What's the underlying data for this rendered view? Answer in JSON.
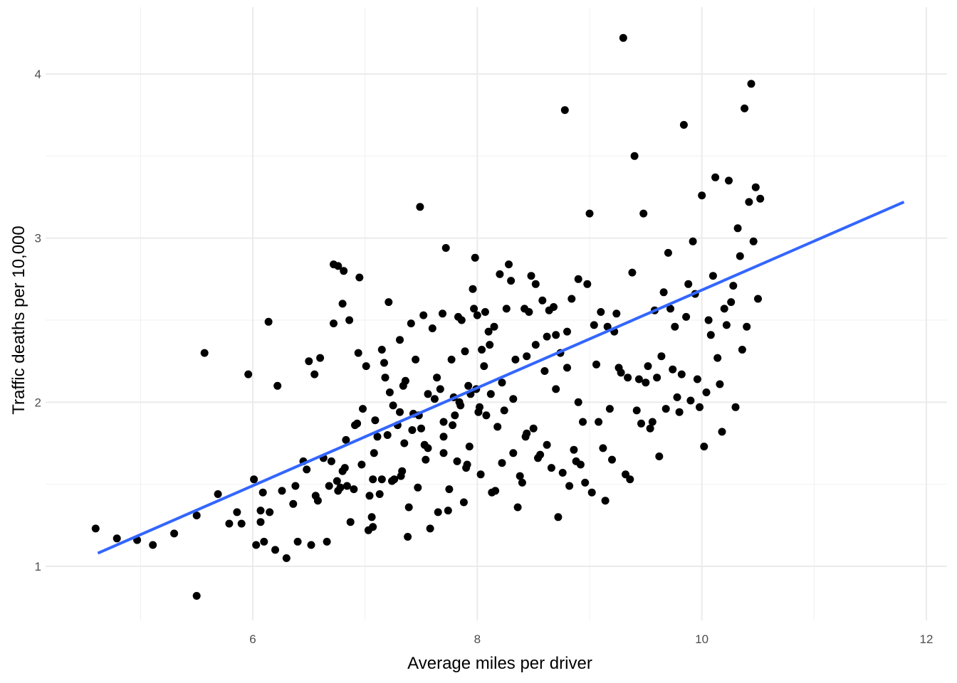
{
  "chart_data": {
    "type": "scatter",
    "title": "",
    "xlabel": "Average miles per driver",
    "ylabel": "Traffic deaths per 10,000",
    "xlim": [
      4.4,
      12.1
    ],
    "ylim": [
      0.68,
      4.3
    ],
    "x_ticks": [
      6,
      8,
      10,
      12
    ],
    "x_tick_labels": [
      "6",
      "8",
      "10",
      "12"
    ],
    "y_ticks": [
      1,
      2,
      3,
      4
    ],
    "y_tick_labels": [
      "1",
      "2",
      "3",
      "4"
    ],
    "grid": true,
    "legend": "none",
    "colors": {
      "points": "#000000",
      "fit_line": "#3366ff",
      "grid": "#ebebeb"
    },
    "fit_line": {
      "x": [
        4.62,
        11.8
      ],
      "y": [
        1.08,
        3.22
      ]
    },
    "points": [
      [
        4.6,
        1.23
      ],
      [
        4.79,
        1.17
      ],
      [
        4.97,
        1.16
      ],
      [
        5.11,
        1.13
      ],
      [
        5.3,
        1.2
      ],
      [
        5.5,
        1.31
      ],
      [
        5.5,
        0.82
      ],
      [
        5.57,
        2.3
      ],
      [
        5.69,
        1.44
      ],
      [
        5.79,
        1.26
      ],
      [
        5.86,
        1.33
      ],
      [
        5.9,
        1.26
      ],
      [
        5.96,
        2.17
      ],
      [
        6.01,
        1.53
      ],
      [
        6.03,
        1.13
      ],
      [
        6.07,
        1.27
      ],
      [
        6.07,
        1.34
      ],
      [
        6.09,
        1.45
      ],
      [
        6.1,
        1.15
      ],
      [
        6.14,
        2.49
      ],
      [
        6.15,
        1.33
      ],
      [
        6.2,
        1.1
      ],
      [
        6.22,
        2.1
      ],
      [
        6.26,
        1.46
      ],
      [
        6.3,
        1.05
      ],
      [
        6.36,
        1.38
      ],
      [
        6.38,
        1.49
      ],
      [
        6.4,
        1.15
      ],
      [
        6.45,
        1.64
      ],
      [
        6.48,
        1.59
      ],
      [
        6.5,
        2.25
      ],
      [
        6.52,
        1.13
      ],
      [
        6.55,
        2.17
      ],
      [
        6.56,
        1.43
      ],
      [
        6.58,
        1.4
      ],
      [
        6.6,
        2.27
      ],
      [
        6.63,
        1.66
      ],
      [
        6.66,
        1.15
      ],
      [
        6.68,
        1.49
      ],
      [
        6.7,
        1.64
      ],
      [
        6.72,
        2.84
      ],
      [
        6.75,
        1.52
      ],
      [
        6.76,
        2.83
      ],
      [
        6.76,
        1.46
      ],
      [
        6.78,
        1.48
      ],
      [
        6.8,
        1.58
      ],
      [
        6.81,
        2.8
      ],
      [
        6.82,
        1.6
      ],
      [
        6.83,
        1.77
      ],
      [
        6.84,
        1.49
      ],
      [
        6.86,
        2.5
      ],
      [
        6.87,
        1.27
      ],
      [
        6.9,
        1.47
      ],
      [
        6.91,
        1.86
      ],
      [
        6.93,
        1.87
      ],
      [
        6.94,
        2.3
      ],
      [
        6.95,
        2.76
      ],
      [
        6.97,
        1.62
      ],
      [
        6.98,
        1.96
      ],
      [
        7.01,
        2.22
      ],
      [
        7.03,
        1.22
      ],
      [
        7.04,
        1.43
      ],
      [
        7.06,
        1.3
      ],
      [
        7.07,
        1.53
      ],
      [
        7.07,
        1.24
      ],
      [
        7.08,
        1.69
      ],
      [
        7.09,
        1.89
      ],
      [
        7.11,
        1.79
      ],
      [
        7.13,
        1.44
      ],
      [
        7.15,
        1.53
      ],
      [
        7.17,
        2.24
      ],
      [
        7.18,
        2.15
      ],
      [
        7.2,
        1.8
      ],
      [
        7.21,
        2.61
      ],
      [
        7.22,
        2.06
      ],
      [
        7.24,
        1.52
      ],
      [
        7.26,
        1.53
      ],
      [
        7.29,
        1.86
      ],
      [
        7.31,
        2.38
      ],
      [
        7.31,
        1.94
      ],
      [
        7.32,
        1.55
      ],
      [
        7.33,
        1.58
      ],
      [
        7.34,
        2.1
      ],
      [
        7.36,
        2.13
      ],
      [
        7.38,
        1.18
      ],
      [
        7.39,
        1.36
      ],
      [
        7.41,
        2.48
      ],
      [
        7.43,
        1.93
      ],
      [
        7.45,
        2.26
      ],
      [
        7.47,
        1.48
      ],
      [
        7.49,
        3.19
      ],
      [
        7.5,
        1.84
      ],
      [
        7.52,
        2.53
      ],
      [
        7.53,
        1.74
      ],
      [
        7.54,
        1.65
      ],
      [
        7.56,
        1.72
      ],
      [
        7.58,
        1.23
      ],
      [
        7.6,
        2.45
      ],
      [
        7.62,
        2.02
      ],
      [
        7.65,
        1.33
      ],
      [
        7.67,
        2.08
      ],
      [
        7.69,
        2.54
      ],
      [
        7.7,
        1.88
      ],
      [
        7.7,
        1.69
      ],
      [
        7.72,
        2.94
      ],
      [
        7.74,
        1.34
      ],
      [
        7.75,
        1.47
      ],
      [
        7.77,
        2.26
      ],
      [
        7.79,
        2.03
      ],
      [
        7.8,
        1.92
      ],
      [
        7.82,
        1.64
      ],
      [
        7.83,
        2.52
      ],
      [
        7.85,
        1.98
      ],
      [
        7.86,
        2.5
      ],
      [
        7.88,
        1.39
      ],
      [
        7.89,
        2.31
      ],
      [
        7.9,
        1.6
      ],
      [
        7.91,
        1.62
      ],
      [
        7.93,
        1.73
      ],
      [
        7.94,
        2.05
      ],
      [
        7.96,
        2.69
      ],
      [
        7.97,
        2.57
      ],
      [
        7.98,
        2.88
      ],
      [
        7.99,
        2.08
      ],
      [
        8.0,
        2.53
      ],
      [
        8.01,
        1.94
      ],
      [
        8.03,
        1.56
      ],
      [
        8.04,
        2.32
      ],
      [
        8.06,
        2.22
      ],
      [
        8.07,
        2.55
      ],
      [
        8.08,
        1.92
      ],
      [
        8.1,
        2.43
      ],
      [
        8.11,
        2.35
      ],
      [
        8.13,
        1.45
      ],
      [
        8.15,
        2.46
      ],
      [
        8.16,
        1.46
      ],
      [
        8.18,
        1.85
      ],
      [
        8.2,
        2.78
      ],
      [
        8.22,
        1.63
      ],
      [
        8.24,
        1.95
      ],
      [
        8.26,
        2.57
      ],
      [
        8.28,
        2.84
      ],
      [
        8.3,
        2.74
      ],
      [
        8.32,
        1.69
      ],
      [
        8.34,
        2.26
      ],
      [
        8.36,
        1.36
      ],
      [
        8.38,
        1.55
      ],
      [
        8.4,
        1.51
      ],
      [
        8.42,
        2.57
      ],
      [
        8.43,
        1.79
      ],
      [
        8.44,
        1.81
      ],
      [
        8.46,
        2.55
      ],
      [
        8.48,
        2.77
      ],
      [
        8.5,
        1.84
      ],
      [
        8.52,
        2.72
      ],
      [
        8.54,
        1.66
      ],
      [
        8.56,
        1.68
      ],
      [
        8.58,
        2.62
      ],
      [
        8.6,
        2.19
      ],
      [
        8.62,
        1.74
      ],
      [
        8.64,
        2.56
      ],
      [
        8.66,
        1.6
      ],
      [
        8.68,
        2.58
      ],
      [
        8.7,
        2.41
      ],
      [
        8.72,
        1.3
      ],
      [
        8.74,
        2.3
      ],
      [
        8.76,
        1.57
      ],
      [
        8.78,
        3.78
      ],
      [
        8.8,
        2.43
      ],
      [
        8.82,
        1.49
      ],
      [
        8.84,
        2.63
      ],
      [
        8.86,
        1.71
      ],
      [
        8.88,
        1.64
      ],
      [
        8.9,
        2.75
      ],
      [
        8.92,
        1.62
      ],
      [
        8.94,
        1.88
      ],
      [
        8.96,
        1.51
      ],
      [
        8.98,
        2.72
      ],
      [
        9.0,
        3.15
      ],
      [
        9.02,
        1.45
      ],
      [
        9.04,
        2.47
      ],
      [
        9.06,
        2.23
      ],
      [
        9.08,
        1.88
      ],
      [
        9.1,
        2.55
      ],
      [
        9.12,
        1.72
      ],
      [
        9.14,
        1.4
      ],
      [
        9.16,
        2.46
      ],
      [
        9.18,
        1.96
      ],
      [
        9.2,
        1.65
      ],
      [
        9.22,
        2.43
      ],
      [
        9.24,
        2.54
      ],
      [
        9.26,
        2.21
      ],
      [
        9.28,
        2.18
      ],
      [
        9.3,
        4.22
      ],
      [
        9.32,
        1.56
      ],
      [
        9.34,
        2.15
      ],
      [
        9.36,
        1.53
      ],
      [
        9.38,
        2.79
      ],
      [
        9.4,
        3.5
      ],
      [
        9.42,
        1.95
      ],
      [
        9.44,
        2.14
      ],
      [
        9.46,
        1.87
      ],
      [
        9.48,
        3.15
      ],
      [
        9.5,
        2.12
      ],
      [
        9.52,
        2.22
      ],
      [
        9.54,
        1.84
      ],
      [
        9.56,
        1.88
      ],
      [
        9.58,
        2.56
      ],
      [
        9.6,
        2.15
      ],
      [
        9.62,
        1.67
      ],
      [
        9.64,
        2.28
      ],
      [
        9.66,
        2.67
      ],
      [
        9.68,
        1.96
      ],
      [
        9.7,
        2.91
      ],
      [
        9.72,
        2.57
      ],
      [
        9.74,
        2.2
      ],
      [
        9.76,
        2.46
      ],
      [
        9.78,
        2.03
      ],
      [
        9.8,
        1.94
      ],
      [
        9.82,
        2.17
      ],
      [
        9.84,
        3.69
      ],
      [
        9.86,
        2.52
      ],
      [
        9.88,
        2.72
      ],
      [
        9.9,
        2.01
      ],
      [
        9.92,
        2.98
      ],
      [
        9.94,
        2.66
      ],
      [
        9.96,
        2.14
      ],
      [
        9.98,
        1.97
      ],
      [
        10.0,
        3.26
      ],
      [
        10.02,
        1.73
      ],
      [
        10.04,
        2.06
      ],
      [
        10.06,
        2.5
      ],
      [
        10.08,
        2.41
      ],
      [
        10.1,
        2.77
      ],
      [
        10.12,
        3.37
      ],
      [
        10.14,
        2.27
      ],
      [
        10.16,
        2.11
      ],
      [
        10.18,
        1.82
      ],
      [
        10.2,
        2.57
      ],
      [
        10.22,
        2.47
      ],
      [
        10.24,
        3.35
      ],
      [
        10.26,
        2.61
      ],
      [
        10.28,
        2.71
      ],
      [
        10.3,
        1.97
      ],
      [
        10.32,
        3.06
      ],
      [
        10.34,
        2.89
      ],
      [
        10.36,
        2.32
      ],
      [
        10.38,
        3.79
      ],
      [
        10.4,
        2.46
      ],
      [
        10.42,
        3.22
      ],
      [
        10.44,
        3.94
      ],
      [
        10.46,
        2.98
      ],
      [
        10.48,
        3.31
      ],
      [
        10.5,
        2.63
      ],
      [
        10.52,
        3.24
      ],
      [
        6.72,
        2.48
      ],
      [
        6.8,
        2.6
      ],
      [
        7.15,
        2.32
      ],
      [
        7.25,
        1.98
      ],
      [
        7.35,
        1.75
      ],
      [
        7.42,
        1.83
      ],
      [
        7.48,
        1.92
      ],
      [
        7.56,
        2.05
      ],
      [
        7.64,
        2.15
      ],
      [
        7.7,
        1.79
      ],
      [
        7.78,
        1.86
      ],
      [
        7.84,
        2.0
      ],
      [
        7.92,
        2.1
      ],
      [
        8.02,
        1.97
      ],
      [
        8.12,
        2.05
      ],
      [
        8.22,
        2.12
      ],
      [
        8.32,
        2.02
      ],
      [
        8.44,
        2.28
      ],
      [
        8.52,
        2.35
      ],
      [
        8.62,
        2.4
      ],
      [
        8.7,
        2.08
      ],
      [
        8.8,
        2.21
      ],
      [
        8.9,
        2.0
      ]
    ]
  }
}
